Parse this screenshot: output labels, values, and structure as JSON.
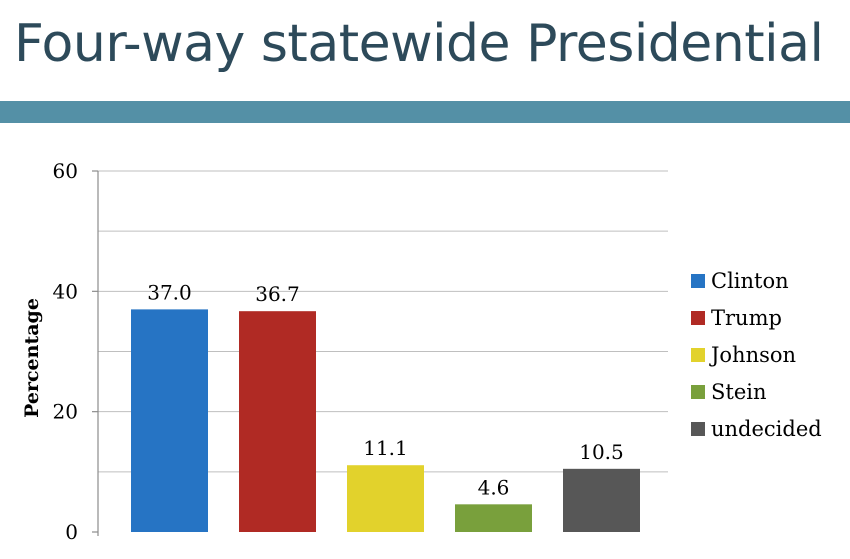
{
  "slide": {
    "title": "Four-way statewide Presidential"
  },
  "colors": {
    "title_text": "#2d4a5a",
    "rule": "#5490a6",
    "gridline": "#bfbfbf",
    "axis": "#8c8c8c"
  },
  "chart_data": {
    "type": "bar",
    "title": "",
    "xlabel": "",
    "ylabel": "Percentage",
    "ylim": [
      0,
      60
    ],
    "yticks": [
      0,
      20,
      40,
      60
    ],
    "grid": true,
    "legend_position": "right",
    "series": [
      {
        "name": "Clinton",
        "value": 37.0,
        "label": "37.0",
        "color": "#2674c4"
      },
      {
        "name": "Trump",
        "value": 36.7,
        "label": "36.7",
        "color": "#b02a24"
      },
      {
        "name": "Johnson",
        "value": 11.1,
        "label": "11.1",
        "color": "#e2d22c"
      },
      {
        "name": "Stein",
        "value": 4.6,
        "label": "4.6",
        "color": "#79a03c"
      },
      {
        "name": "undecided",
        "value": 10.5,
        "label": "10.5",
        "color": "#575757"
      }
    ]
  }
}
